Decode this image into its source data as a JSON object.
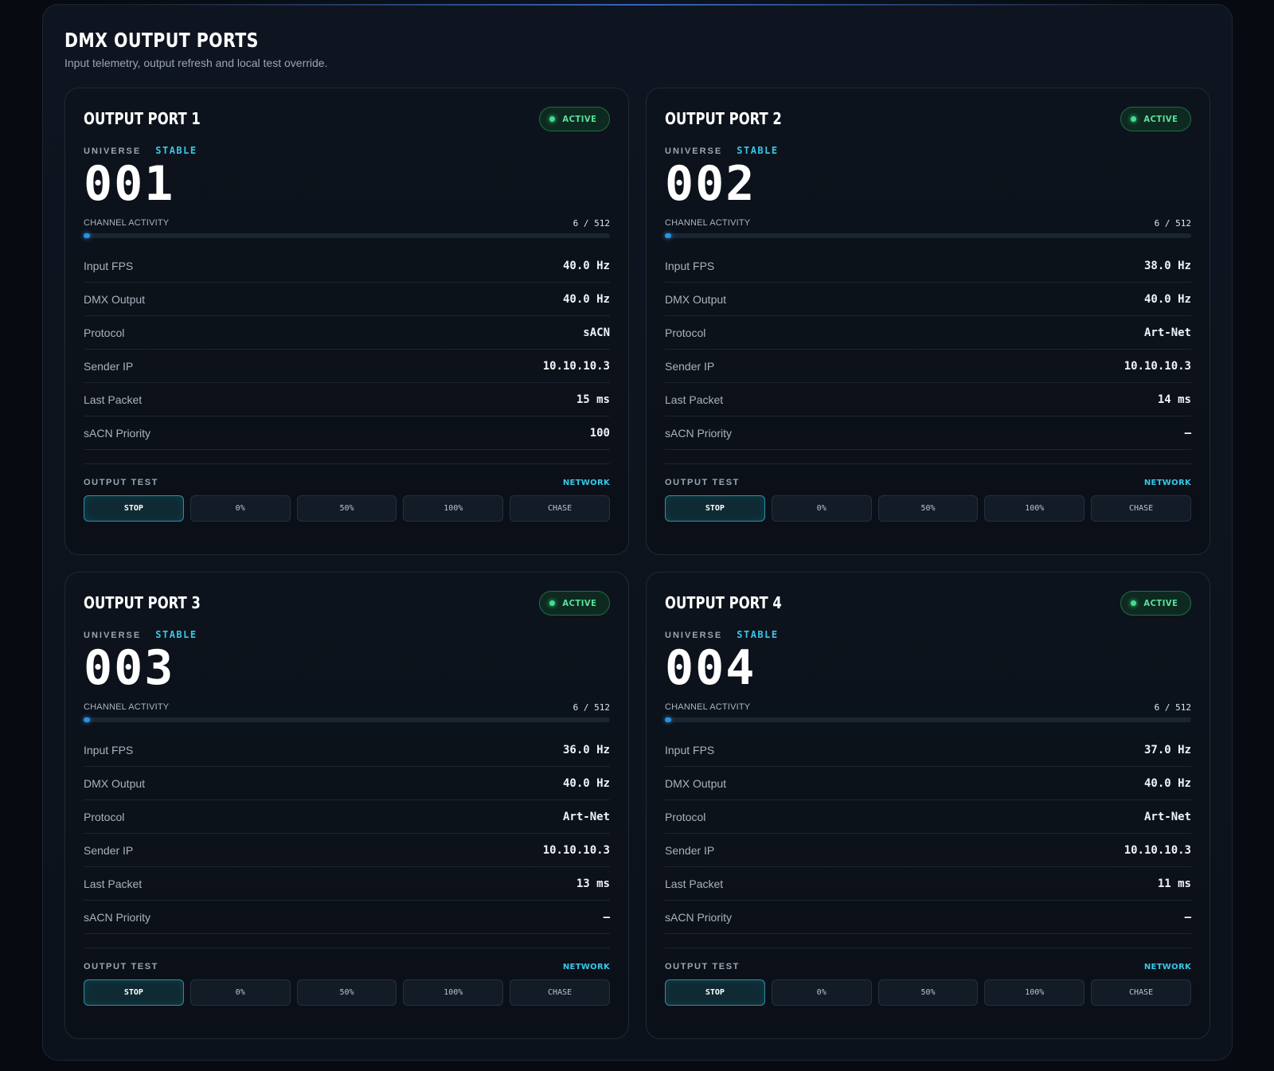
{
  "header": {
    "title": "DMX OUTPUT PORTS",
    "subtitle": "Input telemetry, output refresh and local test override."
  },
  "colors": {
    "accent_cyan": "#37c8e8",
    "active_green": "#3fe08c",
    "bar_blue": "#2a90e0",
    "background": "#070b11"
  },
  "ports": [
    {
      "title": "OUTPUT PORT 1",
      "status": "ACTIVE",
      "status_icon": "status-dot-icon",
      "universe_label": "UNIVERSE",
      "universe_state": "STABLE",
      "universe": "001",
      "activity_label": "CHANNEL ACTIVITY",
      "activity_value": "6 / 512",
      "activity_fraction": 0.0117,
      "stats": [
        {
          "label": "Input FPS",
          "value": "40.0 Hz"
        },
        {
          "label": "DMX Output",
          "value": "40.0 Hz"
        },
        {
          "label": "Protocol",
          "value": "sACN"
        },
        {
          "label": "Sender IP",
          "value": "10.10.10.3"
        },
        {
          "label": "Last Packet",
          "value": "15 ms"
        },
        {
          "label": "sACN Priority",
          "value": "100"
        }
      ],
      "test_label": "OUTPUT TEST",
      "test_source": "NETWORK",
      "buttons": [
        {
          "label": "STOP",
          "selected": true
        },
        {
          "label": "0%",
          "selected": false
        },
        {
          "label": "50%",
          "selected": false
        },
        {
          "label": "100%",
          "selected": false
        },
        {
          "label": "CHASE",
          "selected": false
        }
      ]
    },
    {
      "title": "OUTPUT PORT 2",
      "status": "ACTIVE",
      "status_icon": "status-dot-icon",
      "universe_label": "UNIVERSE",
      "universe_state": "STABLE",
      "universe": "002",
      "activity_label": "CHANNEL ACTIVITY",
      "activity_value": "6 / 512",
      "activity_fraction": 0.0117,
      "stats": [
        {
          "label": "Input FPS",
          "value": "38.0 Hz"
        },
        {
          "label": "DMX Output",
          "value": "40.0 Hz"
        },
        {
          "label": "Protocol",
          "value": "Art-Net"
        },
        {
          "label": "Sender IP",
          "value": "10.10.10.3"
        },
        {
          "label": "Last Packet",
          "value": "14 ms"
        },
        {
          "label": "sACN Priority",
          "value": "–"
        }
      ],
      "test_label": "OUTPUT TEST",
      "test_source": "NETWORK",
      "buttons": [
        {
          "label": "STOP",
          "selected": true
        },
        {
          "label": "0%",
          "selected": false
        },
        {
          "label": "50%",
          "selected": false
        },
        {
          "label": "100%",
          "selected": false
        },
        {
          "label": "CHASE",
          "selected": false
        }
      ]
    },
    {
      "title": "OUTPUT PORT 3",
      "status": "ACTIVE",
      "status_icon": "status-dot-icon",
      "universe_label": "UNIVERSE",
      "universe_state": "STABLE",
      "universe": "003",
      "activity_label": "CHANNEL ACTIVITY",
      "activity_value": "6 / 512",
      "activity_fraction": 0.0117,
      "stats": [
        {
          "label": "Input FPS",
          "value": "36.0 Hz"
        },
        {
          "label": "DMX Output",
          "value": "40.0 Hz"
        },
        {
          "label": "Protocol",
          "value": "Art-Net"
        },
        {
          "label": "Sender IP",
          "value": "10.10.10.3"
        },
        {
          "label": "Last Packet",
          "value": "13 ms"
        },
        {
          "label": "sACN Priority",
          "value": "–"
        }
      ],
      "test_label": "OUTPUT TEST",
      "test_source": "NETWORK",
      "buttons": [
        {
          "label": "STOP",
          "selected": true
        },
        {
          "label": "0%",
          "selected": false
        },
        {
          "label": "50%",
          "selected": false
        },
        {
          "label": "100%",
          "selected": false
        },
        {
          "label": "CHASE",
          "selected": false
        }
      ]
    },
    {
      "title": "OUTPUT PORT 4",
      "status": "ACTIVE",
      "status_icon": "status-dot-icon",
      "universe_label": "UNIVERSE",
      "universe_state": "STABLE",
      "universe": "004",
      "activity_label": "CHANNEL ACTIVITY",
      "activity_value": "6 / 512",
      "activity_fraction": 0.0117,
      "stats": [
        {
          "label": "Input FPS",
          "value": "37.0 Hz"
        },
        {
          "label": "DMX Output",
          "value": "40.0 Hz"
        },
        {
          "label": "Protocol",
          "value": "Art-Net"
        },
        {
          "label": "Sender IP",
          "value": "10.10.10.3"
        },
        {
          "label": "Last Packet",
          "value": "11 ms"
        },
        {
          "label": "sACN Priority",
          "value": "–"
        }
      ],
      "test_label": "OUTPUT TEST",
      "test_source": "NETWORK",
      "buttons": [
        {
          "label": "STOP",
          "selected": true
        },
        {
          "label": "0%",
          "selected": false
        },
        {
          "label": "50%",
          "selected": false
        },
        {
          "label": "100%",
          "selected": false
        },
        {
          "label": "CHASE",
          "selected": false
        }
      ]
    }
  ]
}
